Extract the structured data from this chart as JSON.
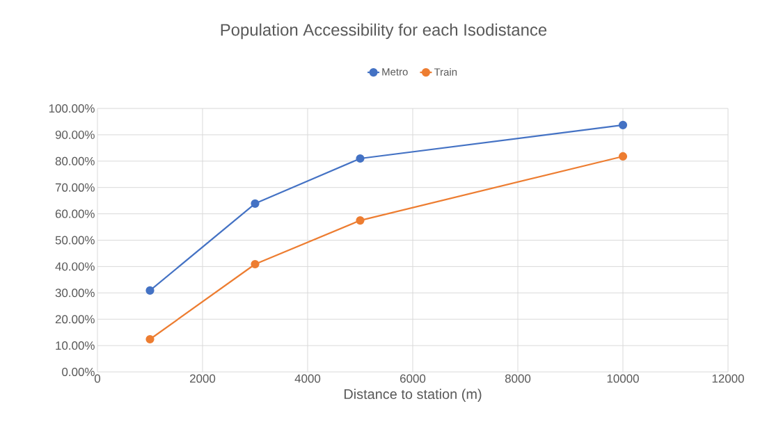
{
  "chart_data": {
    "type": "line",
    "title": "Population Accessibility for each Isodistance",
    "xlabel": "Distance to station (m)",
    "x": [
      1000,
      3000,
      5000,
      10000
    ],
    "series": [
      {
        "name": "Metro",
        "color": "#4472c4",
        "values": [
          30.9,
          63.9,
          81.0,
          93.7
        ]
      },
      {
        "name": "Train",
        "color": "#ed7d31",
        "values": [
          12.4,
          40.9,
          57.5,
          81.8
        ]
      }
    ],
    "xlim": [
      0,
      12000
    ],
    "xticks": [
      0,
      2000,
      4000,
      6000,
      8000,
      10000,
      12000
    ],
    "ylim": [
      0,
      100
    ],
    "yticks": [
      {
        "value": 0,
        "label": "0.00%"
      },
      {
        "value": 10,
        "label": "10.00%"
      },
      {
        "value": 20,
        "label": "20.00%"
      },
      {
        "value": 30,
        "label": "30.00%"
      },
      {
        "value": 40,
        "label": "40.00%"
      },
      {
        "value": 50,
        "label": "50.00%"
      },
      {
        "value": 60,
        "label": "60.00%"
      },
      {
        "value": 70,
        "label": "70.00%"
      },
      {
        "value": 80,
        "label": "80.00%"
      },
      {
        "value": 90,
        "label": "90.00%"
      },
      {
        "value": 100,
        "label": "100.00%"
      }
    ],
    "grid": true,
    "legend": "top",
    "marker": "circle",
    "line_style": "solid"
  }
}
